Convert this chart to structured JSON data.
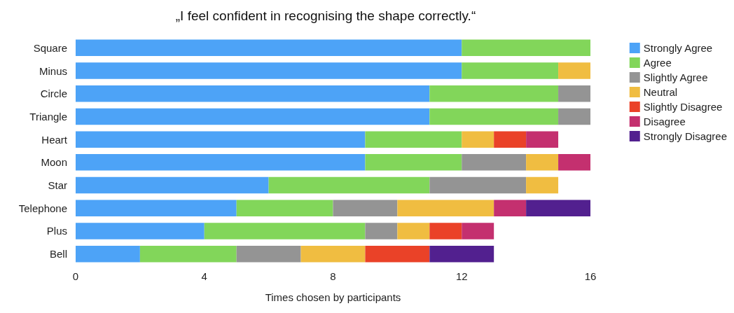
{
  "chart_data": {
    "type": "bar",
    "orientation": "horizontal",
    "stacked": true,
    "title": "„I feel confident in recognising the shape correctly.“",
    "xlabel": "Times chosen by participants",
    "categories": [
      "Square",
      "Minus",
      "Circle",
      "Triangle",
      "Heart",
      "Moon",
      "Star",
      "Telephone",
      "Plus",
      "Bell"
    ],
    "xlim": [
      0,
      16
    ],
    "xticks": [
      0,
      4,
      8,
      12,
      16
    ],
    "grid": false,
    "legend": "right",
    "series": [
      {
        "name": "Strongly Agree",
        "color": "#4da3f7",
        "values": [
          12,
          12,
          11,
          11,
          9,
          9,
          6,
          5,
          4,
          2
        ]
      },
      {
        "name": "Agree",
        "color": "#82d65a",
        "values": [
          4,
          3,
          4,
          4,
          3,
          3,
          5,
          3,
          5,
          3
        ]
      },
      {
        "name": "Slightly Agree",
        "color": "#949494",
        "values": [
          null,
          null,
          1,
          1,
          null,
          2,
          3,
          2,
          1,
          2
        ]
      },
      {
        "name": "Neutral",
        "color": "#f0bd41",
        "values": [
          null,
          1,
          null,
          null,
          1,
          1,
          1,
          3,
          1,
          2
        ]
      },
      {
        "name": "Slightly Disagree",
        "color": "#ea4228",
        "values": [
          null,
          null,
          null,
          null,
          1,
          null,
          null,
          null,
          1,
          2
        ]
      },
      {
        "name": "Disagree",
        "color": "#c4306f",
        "values": [
          null,
          null,
          null,
          null,
          1,
          1,
          null,
          1,
          1,
          null
        ]
      },
      {
        "name": "Strongly Disagree",
        "color": "#52208f",
        "values": [
          null,
          null,
          null,
          null,
          null,
          null,
          null,
          2,
          null,
          2
        ]
      }
    ]
  }
}
